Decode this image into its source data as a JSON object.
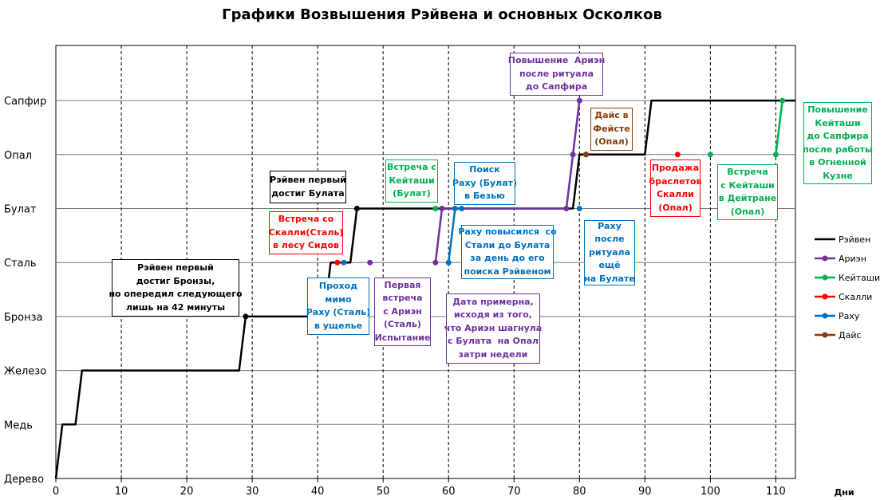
{
  "chart_data": {
    "type": "line",
    "title": "Графики Возвышения Рэйвена и основных Осколков",
    "xlabel": "Дни",
    "ylabel": "",
    "xlim": [
      0,
      113
    ],
    "x_ticks": [
      0,
      10,
      20,
      30,
      40,
      50,
      60,
      70,
      80,
      90,
      100,
      110
    ],
    "categories": [
      "Дерево",
      "Медь",
      "Железо",
      "Бронза",
      "Сталь",
      "Булат",
      "Опал",
      "Сапфир"
    ],
    "grid": "horizontal solid, vertical dashed",
    "legend_position": "right",
    "series": [
      {
        "name": "Рэйвен",
        "color": "#000000",
        "points": [
          [
            0,
            0
          ],
          [
            1,
            1
          ],
          [
            3,
            1
          ],
          [
            4,
            2
          ],
          [
            28,
            2
          ],
          [
            29,
            3
          ],
          [
            41,
            3
          ],
          [
            42,
            4
          ],
          [
            45,
            4
          ],
          [
            46,
            5
          ],
          [
            79,
            5
          ],
          [
            80,
            6
          ],
          [
            90,
            6
          ],
          [
            91,
            7
          ],
          [
            113,
            7
          ]
        ],
        "marked": [
          [
            29,
            3
          ],
          [
            46,
            5
          ],
          [
            81,
            6
          ]
        ]
      },
      {
        "name": "Ариэн",
        "color": "#7030a0",
        "points": [
          [
            48,
            4
          ]
        ],
        "points2": [
          [
            58,
            4
          ],
          [
            59,
            5
          ],
          [
            78,
            5
          ],
          [
            79,
            6
          ],
          [
            80,
            7
          ]
        ]
      },
      {
        "name": "Кейташи",
        "color": "#00b050",
        "points": [
          [
            58,
            5
          ]
        ],
        "points2": [
          [
            100,
            6
          ]
        ],
        "points3": [
          [
            110,
            6
          ],
          [
            111,
            7
          ]
        ]
      },
      {
        "name": "Скалли",
        "color": "#ff0000",
        "points": [
          [
            43,
            4
          ]
        ],
        "points2": [
          [
            95,
            6
          ]
        ]
      },
      {
        "name": "Раху",
        "color": "#0070c0",
        "points": [
          [
            44,
            4
          ]
        ],
        "points2": [
          [
            60,
            4
          ],
          [
            61,
            5
          ],
          [
            62,
            5
          ]
        ],
        "points3": [
          [
            80,
            5
          ]
        ]
      },
      {
        "name": "Дайс",
        "color": "#843c0c",
        "points": [
          [
            81,
            6
          ]
        ]
      }
    ],
    "annotations": [
      {
        "id": "a1",
        "color": "#000000",
        "text": "Рэйвен первый\nдостиг Бронзы,\nно опередил следующего\nлишь на 42 минуты"
      },
      {
        "id": "a2",
        "color": "#000000",
        "text": "Рэйвен первый\nдостиг Булата"
      },
      {
        "id": "a3",
        "color": "#ff0000",
        "text": "Встреча со\nСкалли(Сталь)\nв лесу Сидов"
      },
      {
        "id": "a4",
        "color": "#0070c0",
        "text": "Проход\nмимо\nРаху (Сталь)\nв ущелье"
      },
      {
        "id": "a5",
        "color": "#7030a0",
        "text": "Первая\nвстреча\nс Ариэн\n(Сталь)\nИспытание"
      },
      {
        "id": "a6",
        "color": "#00b050",
        "text": "Встреча с\nКейташи\n(Булат)"
      },
      {
        "id": "a7",
        "color": "#0070c0",
        "text": "Поиск\nРаху (Булат)\nв Безью"
      },
      {
        "id": "a8",
        "color": "#0070c0",
        "text": "Раху повысился  со\nСтали до Булата\nза день до его\nпоиска Рэйвеном"
      },
      {
        "id": "a9",
        "color": "#7030a0",
        "text": "Дата примерна,\nисходя из того,\nчто Ариэн шагнула\nс Булата  на Опал\nзатри недели"
      },
      {
        "id": "a10",
        "color": "#7030a0",
        "text": "Повышение  Ариэн\nпосле ритуала\nдо Сапфира"
      },
      {
        "id": "a11",
        "color": "#843c0c",
        "text": "Дайс в\nФейсте\n(Опал)"
      },
      {
        "id": "a12",
        "color": "#0070c0",
        "text": "Раху\nпосле\nритуала\nещё\nна Булате"
      },
      {
        "id": "a13",
        "color": "#ff0000",
        "text": "Продажа\nбраслетов\nСкалли\n(Опал)"
      },
      {
        "id": "a14",
        "color": "#00b050",
        "text": "Встреча\nс Кейташи\nв Дейтране\n(Опал)"
      },
      {
        "id": "a15",
        "color": "#00b050",
        "text": "Повышение\nКейташи\nдо Сапфира\nпосле работы\nв Огненной\nКузне"
      }
    ]
  }
}
